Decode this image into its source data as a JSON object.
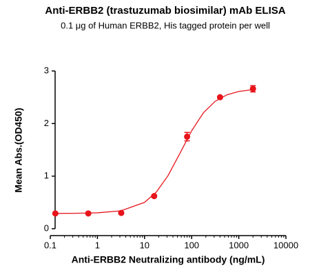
{
  "chart_data": {
    "type": "scatter",
    "title": "Anti-ERBB2 (trastuzumab biosimilar) mAb ELISA",
    "subtitle": "0.1 μg of Human ERBB2, His tagged protein per well",
    "x_label": "Anti-ERBB2 Neutralizing antibody (ng/mL)",
    "y_label": "Mean Abs.(OD450)",
    "color": "#e8141b",
    "x": [
      0.128,
      0.64,
      3.2,
      16,
      80,
      400,
      2000
    ],
    "values": [
      0.29,
      0.29,
      0.3,
      0.62,
      1.75,
      2.5,
      2.66
    ],
    "errors": [
      0.02,
      0.02,
      0.02,
      0.02,
      0.08,
      0.02,
      0.06
    ],
    "fit": {
      "x": [
        0.126,
        0.316,
        1,
        3.16,
        10,
        17.8,
        31.6,
        56.2,
        100,
        178,
        316,
        562,
        1000,
        2000
      ],
      "values": [
        0.291,
        0.293,
        0.302,
        0.341,
        0.501,
        0.697,
        1.011,
        1.431,
        1.862,
        2.205,
        2.424,
        2.547,
        2.61,
        2.645
      ]
    },
    "xscale": "log",
    "xlim": [
      0.1,
      10000
    ],
    "xticks": [
      0.1,
      1,
      10,
      100,
      1000,
      10000
    ],
    "ylim": [
      0,
      3
    ],
    "yticks": [
      0,
      1,
      2,
      3
    ]
  }
}
